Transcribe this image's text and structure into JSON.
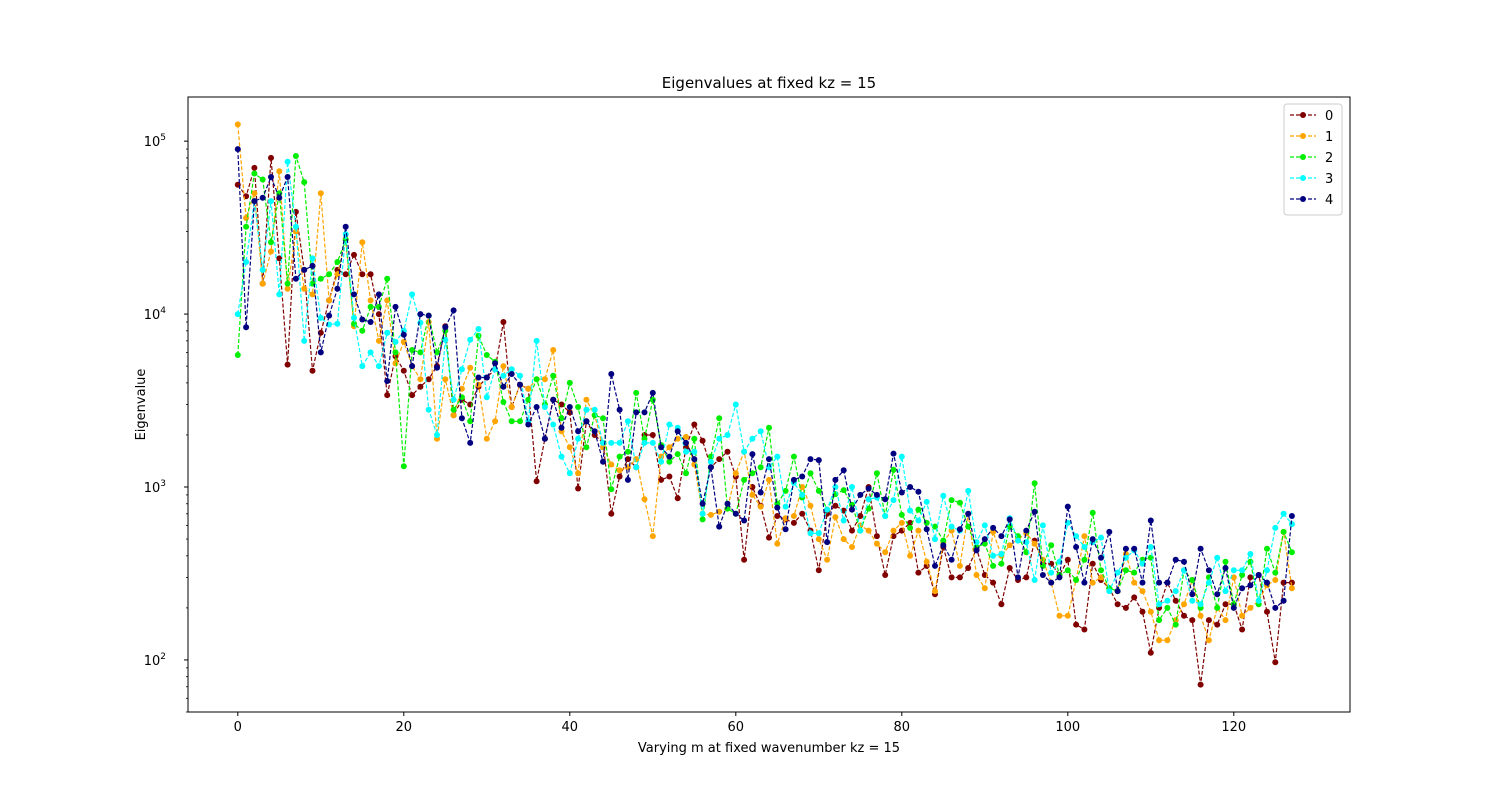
{
  "chart_data": {
    "type": "line",
    "title": "Eigenvalues at fixed kz = 15",
    "xlabel": "Varying m at fixed wavenumber kz = 15",
    "ylabel": "Eigenvalue",
    "yscale": "log",
    "xlim": [
      -6,
      134
    ],
    "ylim": [
      50,
      180000
    ],
    "xticks": [
      0,
      20,
      40,
      60,
      80,
      100,
      120
    ],
    "yticks": [
      {
        "value": 100,
        "base": "10",
        "exp": "2"
      },
      {
        "value": 1000,
        "base": "10",
        "exp": "3"
      },
      {
        "value": 10000,
        "base": "10",
        "exp": "4"
      },
      {
        "value": 100000,
        "base": "10",
        "exp": "5"
      }
    ],
    "legend_position": "top-right",
    "line_style": "dashed",
    "marker": "circle",
    "x": [
      0,
      1,
      2,
      3,
      4,
      5,
      6,
      7,
      8,
      9,
      10,
      11,
      12,
      13,
      14,
      15,
      16,
      17,
      18,
      19,
      20,
      21,
      22,
      23,
      24,
      25,
      26,
      27,
      28,
      29,
      30,
      31,
      32,
      33,
      34,
      35,
      36,
      37,
      38,
      39,
      40,
      41,
      42,
      43,
      44,
      45,
      46,
      47,
      48,
      49,
      50,
      51,
      52,
      53,
      54,
      55,
      56,
      57,
      58,
      59,
      60,
      61,
      62,
      63,
      64,
      65,
      66,
      67,
      68,
      69,
      70,
      71,
      72,
      73,
      74,
      75,
      76,
      77,
      78,
      79,
      80,
      81,
      82,
      83,
      84,
      85,
      86,
      87,
      88,
      89,
      90,
      91,
      92,
      93,
      94,
      95,
      96,
      97,
      98,
      99,
      100,
      101,
      102,
      103,
      104,
      105,
      106,
      107,
      108,
      109,
      110,
      111,
      112,
      113,
      114,
      115,
      116,
      117,
      118,
      119,
      120,
      121,
      122,
      123,
      124,
      125,
      126,
      127
    ],
    "series": [
      {
        "name": "0",
        "color": "#800000",
        "values": [
          56000,
          48000,
          70000,
          15000,
          80000,
          21000,
          5100,
          39000,
          18000,
          4700,
          7800,
          12000,
          18000,
          17000,
          22000,
          17000,
          17000,
          10000,
          3400,
          5700,
          4700,
          3400,
          3800,
          4200,
          5000,
          8500,
          2600,
          3200,
          3000,
          3800,
          4300,
          4800,
          9000,
          2900,
          3900,
          3700,
          1080,
          1900,
          3200,
          3000,
          2700,
          980,
          2400,
          2000,
          1800,
          700,
          1150,
          1450,
          1300,
          2000,
          2000,
          1100,
          1150,
          860,
          1700,
          2300,
          1850,
          1300,
          1450,
          1600,
          1150,
          380,
          1000,
          780,
          510,
          680,
          650,
          620,
          700,
          560,
          330,
          700,
          780,
          730,
          560,
          680,
          1000,
          520,
          310,
          520,
          560,
          620,
          320,
          350,
          240,
          450,
          300,
          300,
          340,
          440,
          310,
          280,
          210,
          340,
          290,
          300,
          490,
          360,
          360,
          310,
          380,
          160,
          150,
          360,
          290,
          260,
          210,
          200,
          230,
          190,
          110,
          200,
          280,
          220,
          180,
          170,
          72,
          170,
          160,
          210,
          210,
          150,
          300,
          310,
          190,
          97,
          280,
          280
        ]
      },
      {
        "name": "1",
        "color": "#ffa500",
        "values": [
          125000,
          36000,
          50000,
          15000,
          23000,
          67000,
          14000,
          30000,
          14000,
          13000,
          50000,
          12000,
          17000,
          27000,
          8500,
          26000,
          12000,
          7000,
          12000,
          5200,
          6900,
          5000,
          4200,
          9000,
          1900,
          4200,
          2600,
          3700,
          4900,
          3900,
          1900,
          2400,
          5000,
          2900,
          3900,
          3700,
          4200,
          4200,
          6200,
          2100,
          1700,
          1200,
          3200,
          2600,
          1700,
          1350,
          1250,
          1300,
          1450,
          850,
          520,
          1500,
          1700,
          1900,
          1950,
          1350,
          700,
          690,
          720,
          750,
          1200,
          1600,
          900,
          770,
          1100,
          470,
          660,
          680,
          1000,
          780,
          500,
          380,
          670,
          500,
          450,
          600,
          560,
          470,
          420,
          560,
          620,
          400,
          560,
          370,
          250,
          480,
          560,
          350,
          700,
          310,
          260,
          550,
          400,
          460,
          500,
          540,
          470,
          380,
          280,
          180,
          180,
          290,
          520,
          280,
          300,
          260,
          250,
          410,
          280,
          250,
          190,
          130,
          130,
          170,
          210,
          290,
          180,
          130,
          200,
          170,
          300,
          180,
          200,
          220,
          270,
          290,
          550,
          260
        ]
      },
      {
        "name": "2",
        "color": "#00ee00",
        "values": [
          5800,
          32000,
          65000,
          60000,
          26000,
          50000,
          15000,
          82000,
          58000,
          15000,
          16000,
          17000,
          20000,
          27000,
          8800,
          8000,
          11000,
          11000,
          16000,
          6000,
          1320,
          6200,
          6000,
          9800,
          6000,
          8000,
          2800,
          3300,
          2400,
          7500,
          5800,
          5300,
          3100,
          2400,
          2400,
          3200,
          4200,
          3000,
          4400,
          2500,
          4000,
          2900,
          1700,
          2600,
          2500,
          970,
          1500,
          1600,
          3500,
          1900,
          3200,
          1750,
          1400,
          1550,
          1200,
          1900,
          650,
          1500,
          2500,
          750,
          700,
          1100,
          1200,
          1300,
          2200,
          800,
          950,
          1500,
          870,
          1200,
          950,
          740,
          910,
          960,
          790,
          560,
          750,
          1200,
          680,
          1260,
          690,
          580,
          740,
          620,
          590,
          490,
          840,
          810,
          590,
          450,
          470,
          350,
          360,
          590,
          520,
          420,
          1050,
          350,
          460,
          310,
          330,
          290,
          380,
          710,
          330,
          260,
          250,
          330,
          320,
          380,
          390,
          170,
          200,
          160,
          330,
          290,
          200,
          300,
          200,
          370,
          210,
          310,
          370,
          210,
          440,
          320,
          550,
          420
        ]
      },
      {
        "name": "3",
        "color": "#00ffff",
        "values": [
          10000,
          20000,
          45000,
          18000,
          45000,
          13000,
          76000,
          32000,
          7000,
          21000,
          9500,
          8700,
          8800,
          29000,
          9500,
          5000,
          6000,
          5000,
          7800,
          6900,
          8000,
          13000,
          8900,
          2800,
          2000,
          7100,
          3200,
          4800,
          7100,
          8200,
          3300,
          4800,
          4400,
          4800,
          4400,
          2400,
          7000,
          2900,
          2300,
          1500,
          1200,
          1900,
          2800,
          2800,
          1800,
          1800,
          1800,
          2400,
          1300,
          1800,
          1800,
          1400,
          2300,
          2200,
          1600,
          1600,
          700,
          1400,
          1900,
          2000,
          3000,
          1600,
          1900,
          2100,
          1300,
          1500,
          770,
          1060,
          900,
          540,
          540,
          740,
          1000,
          640,
          1000,
          560,
          850,
          870,
          680,
          840,
          1500,
          730,
          640,
          820,
          500,
          890,
          590,
          560,
          950,
          480,
          600,
          400,
          410,
          660,
          490,
          480,
          290,
          600,
          320,
          370,
          620,
          520,
          450,
          480,
          510,
          250,
          320,
          390,
          430,
          360,
          450,
          210,
          220,
          250,
          330,
          220,
          210,
          280,
          390,
          250,
          330,
          330,
          410,
          220,
          330,
          580,
          700,
          610
        ]
      },
      {
        "name": "4",
        "color": "#000080",
        "values": [
          90000,
          8400,
          45000,
          47000,
          62000,
          47000,
          62000,
          16000,
          18000,
          19000,
          6000,
          9800,
          14000,
          32000,
          13000,
          9300,
          9000,
          13000,
          4100,
          11000,
          7600,
          5000,
          10000,
          9800,
          4900,
          8400,
          10500,
          2500,
          1800,
          4300,
          4300,
          5200,
          3800,
          4500,
          3900,
          2300,
          2900,
          1900,
          3200,
          2200,
          2900,
          2100,
          2400,
          2100,
          1400,
          4500,
          2800,
          1100,
          2700,
          2700,
          3500,
          1700,
          1500,
          2100,
          1800,
          1450,
          800,
          1300,
          590,
          800,
          700,
          640,
          1550,
          930,
          1450,
          760,
          570,
          1100,
          1150,
          1450,
          1430,
          480,
          1100,
          1250,
          740,
          900,
          980,
          900,
          850,
          1560,
          930,
          1000,
          940,
          570,
          350,
          460,
          380,
          570,
          700,
          430,
          500,
          580,
          520,
          650,
          300,
          560,
          720,
          310,
          280,
          300,
          770,
          450,
          280,
          500,
          390,
          550,
          250,
          440,
          440,
          280,
          640,
          280,
          280,
          380,
          370,
          240,
          440,
          330,
          240,
          340,
          200,
          260,
          270,
          310,
          280,
          200,
          220,
          680
        ]
      }
    ]
  }
}
